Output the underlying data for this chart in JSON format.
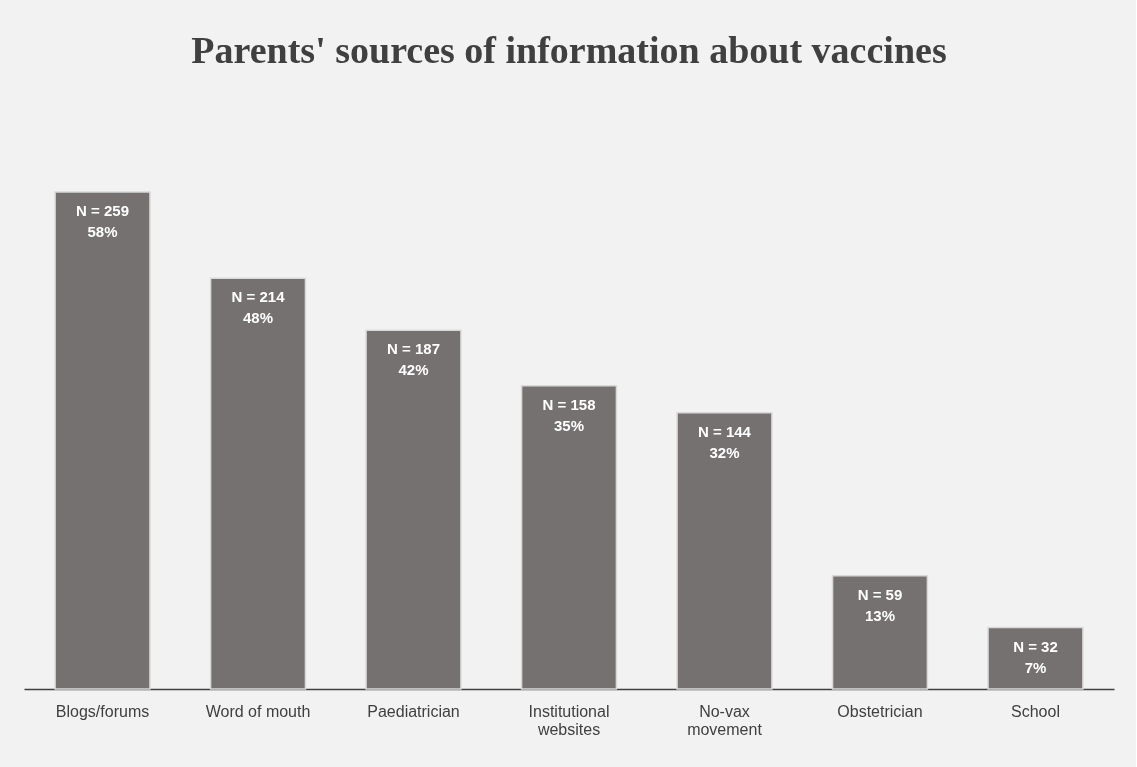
{
  "chart_data": {
    "type": "bar",
    "title": "Parents' sources of information about vaccines",
    "categories": [
      "Blogs/forums",
      "Word of mouth",
      "Paediatrician",
      "Institutional websites",
      "No-vax movement",
      "Obstetrician",
      "School"
    ],
    "values": [
      259,
      214,
      187,
      158,
      144,
      59,
      32
    ],
    "value_labels": [
      "N = 259\n58%",
      "N = 214\n48%",
      "N = 187\n42%",
      "N = 158\n35%",
      "N = 144\n32%",
      "N = 59\n13%",
      "N = 32\n7%"
    ],
    "color": "#767171",
    "tick_labels": "x"
  }
}
